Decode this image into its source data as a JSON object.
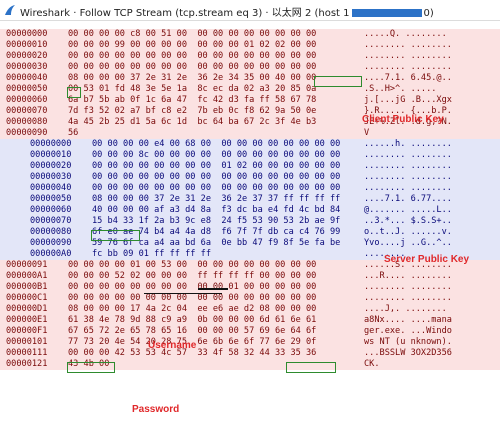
{
  "window": {
    "title_prefix": "Wireshark · Follow TCP Stream (tcp.stream eq 3) · 以太网 2 (host 1",
    "title_suffix": "0)",
    "app_icon": "wireshark-fin-icon",
    "accent": "#2c72c7"
  },
  "colors": {
    "client_bg": "#fbe2e2",
    "client_fg": "#7a0a0a",
    "server_bg": "#e3e6f8",
    "server_fg": "#0a0a7a",
    "annotation": "#e0282a",
    "highlight": "#2e8b2e"
  },
  "annotations": {
    "client_key": "Client Public Key",
    "server_key": "Server Public Key",
    "username": "Username",
    "password": "Password"
  },
  "rows": [
    {
      "d": "c",
      "off": "00000000",
      "hex": "00 00 00 00 c8 00 51 00  00 00 00 00 00 00 00 00",
      "asc": ".....Q. ........"
    },
    {
      "d": "c",
      "off": "00000010",
      "hex": "00 00 00 99 00 00 00 00  00 00 00 01 02 02 00 00",
      "asc": "........ ........"
    },
    {
      "d": "c",
      "off": "00000020",
      "hex": "00 00 00 00 00 00 00 00  00 00 00 00 00 00 00 00",
      "asc": "........ ........"
    },
    {
      "d": "c",
      "off": "00000030",
      "hex": "00 00 00 00 00 00 00 00  00 00 00 00 00 00 00 00",
      "asc": "........ ........"
    },
    {
      "d": "c",
      "off": "00000040",
      "hex": "08 00 00 00 37 2e 31 2e  36 2e 34 35 00 40 00 00",
      "asc": "....7.1. 6.45.@.."
    },
    {
      "d": "c",
      "off": "00000050",
      "hex": "00 53 01 fd 48 3e 5e 1a  8c ec da 02 a3 20 85 0a",
      "asc": ".S..H>^. ....."
    },
    {
      "d": "c",
      "off": "00000060",
      "hex": "6a b7 5b ab 0f 1c 6a 47  fc 42 d3 fa ff 58 67 78",
      "asc": "j.[...jG .B...Xgx"
    },
    {
      "d": "c",
      "off": "00000070",
      "hex": "7d f3 52 02 a7 bf c8 e2  7b eb 0c f8 62 9a 50 0e",
      "asc": "}.R..... {...b.P."
    },
    {
      "d": "c",
      "off": "00000080",
      "hex": "4a 45 2b 25 d1 5a 6c 1d  bc 64 ba 67 2c 3f 4e b3",
      "asc": "JE+%.Zl. .d.g,?N."
    },
    {
      "d": "c",
      "off": "00000090",
      "hex": "56",
      "asc": "V"
    },
    {
      "d": "s",
      "off": "00000000",
      "hex": "00 00 00 00 e4 00 68 00  00 00 00 00 00 00 00 00",
      "asc": "......h. ........"
    },
    {
      "d": "s",
      "off": "00000010",
      "hex": "00 00 00 8c 00 00 00 00  00 00 00 00 00 00 00 00",
      "asc": "........ ........"
    },
    {
      "d": "s",
      "off": "00000020",
      "hex": "00 00 00 00 00 00 00 00  01 02 00 00 00 00 00 00",
      "asc": "........ ........"
    },
    {
      "d": "s",
      "off": "00000030",
      "hex": "00 00 00 00 00 00 00 00  00 00 00 00 00 00 00 00",
      "asc": "........ ........"
    },
    {
      "d": "s",
      "off": "00000040",
      "hex": "00 00 00 00 00 00 00 00  00 00 00 00 00 00 00 00",
      "asc": "........ ........"
    },
    {
      "d": "s",
      "off": "00000050",
      "hex": "08 00 00 00 37 2e 31 2e  36 2e 37 37 ff ff ff ff",
      "asc": "....7.1. 6.77...."
    },
    {
      "d": "s",
      "off": "00000060",
      "hex": "40 00 00 00 af a3 d4 8a  f3 dc ba e4 fd 4c bd 84",
      "asc": "@....... .....L.."
    },
    {
      "d": "s",
      "off": "00000070",
      "hex": "15 b4 33 1f 2a b3 9c e8  24 f5 53 90 53 2b ae 9f",
      "asc": "..3.*... $.S.S+.."
    },
    {
      "d": "s",
      "off": "00000080",
      "hex": "6f e0 ae 74 b4 a4 4a d8  f6 7f 7f db ca c4 76 99",
      "asc": "o..t..J. ......v."
    },
    {
      "d": "s",
      "off": "00000090",
      "hex": "59 76 6f ca a4 aa bd 6a  0e bb 47 f9 8f 5e fa be",
      "asc": "Yvo....j ..G..^.."
    },
    {
      "d": "s",
      "off": "000000A0",
      "hex": "fc bb 09 01 ff ff ff ff",
      "asc": "........"
    },
    {
      "d": "c",
      "off": "00000091",
      "hex": "00 00 00 00 01 00 53 00  00 00 00 00 00 00 00 00",
      "asc": "......S. ........"
    },
    {
      "d": "c",
      "off": "000000A1",
      "hex": "00 00 00 52 02 00 00 00  ff ff ff ff 00 00 00 00",
      "asc": "...R.... ........"
    },
    {
      "d": "c",
      "off": "000000B1",
      "hex": "00 00 00 00 00 00 00 00  00 00 01 00 00 00 00 00",
      "asc": "........ ........"
    },
    {
      "d": "c",
      "off": "000000C1",
      "hex": "00 00 00 00 00 00 00 00  00 00 00 00 00 00 00 00",
      "asc": "........ ........"
    },
    {
      "d": "c",
      "off": "000000D1",
      "hex": "08 00 00 00 17 4a 2c 04  ee e6 ae d2 08 00 00 00",
      "asc": "....J,. ........"
    },
    {
      "d": "c",
      "off": "000000E1",
      "hex": "61 38 4e 78 9d 88 c9 a9  0b 00 00 00 6d 61 6e 61",
      "asc": "a8Nx.... ....mana"
    },
    {
      "d": "c",
      "off": "000000F1",
      "hex": "67 65 72 2e 65 78 65 16  00 00 00 57 69 6e 64 6f",
      "asc": "ger.exe. ...Windo"
    },
    {
      "d": "c",
      "off": "00000101",
      "hex": "77 73 20 4e 54 20 28 75  6e 6b 6e 6f 77 6e 29 0f",
      "asc": "ws NT (u nknown)."
    },
    {
      "d": "c",
      "off": "00000111",
      "hex": "00 00 00 42 53 53 4c 57  33 4f 58 32 44 33 35 36",
      "asc": "...BSSLW 3OX2D356"
    },
    {
      "d": "c",
      "off": "00000121",
      "hex": "43 4b 00",
      "asc": "CK."
    }
  ]
}
